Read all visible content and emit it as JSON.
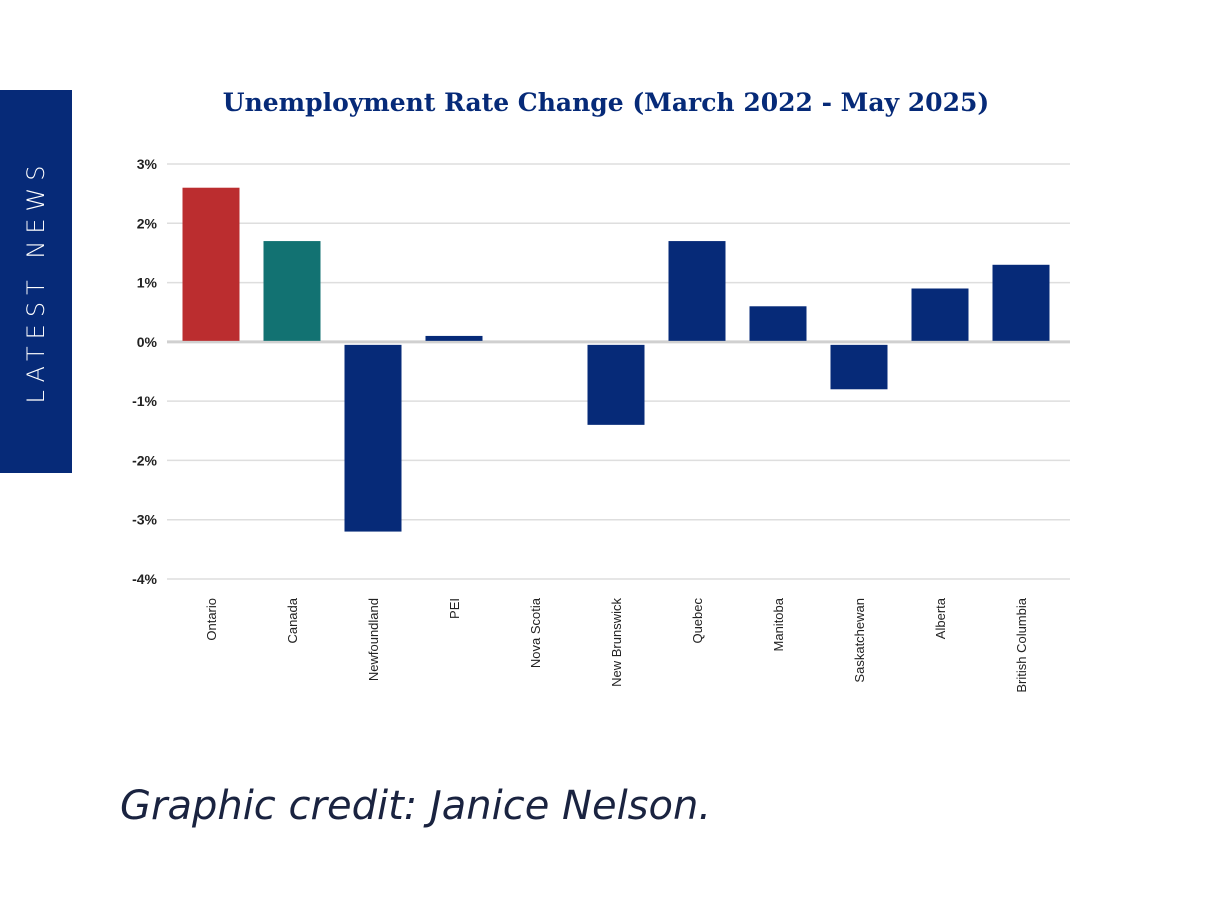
{
  "sidebar": {
    "label": "LATEST NEWS",
    "color": "#062a78"
  },
  "credit": "Graphic credit: Janice Nelson.",
  "chart_data": {
    "type": "bar",
    "title": "Unemployment Rate Change (March 2022 - May 2025)",
    "categories": [
      "Ontario",
      "Canada",
      "Newfoundland",
      "PEI",
      "Nova Scotia",
      "New Brunswick",
      "Quebec",
      "Manitoba",
      "Saskatchewan",
      "Alberta",
      "British Columbia"
    ],
    "values": [
      2.6,
      1.7,
      -3.2,
      0.1,
      0,
      -1.4,
      1.7,
      0.6,
      -0.8,
      0.9,
      1.3
    ],
    "colors": [
      "#bb2d2f",
      "#127272",
      "#062a78",
      "#062a78",
      "#062a78",
      "#062a78",
      "#062a78",
      "#062a78",
      "#062a78",
      "#062a78",
      "#062a78"
    ],
    "ylim": [
      -4,
      3
    ],
    "yticks": [
      "3%",
      "2%",
      "1%",
      "0%",
      "-1%",
      "-2%",
      "-3%",
      "-4%"
    ],
    "xlabel": "",
    "ylabel": "",
    "grid": true,
    "legend": "none"
  }
}
